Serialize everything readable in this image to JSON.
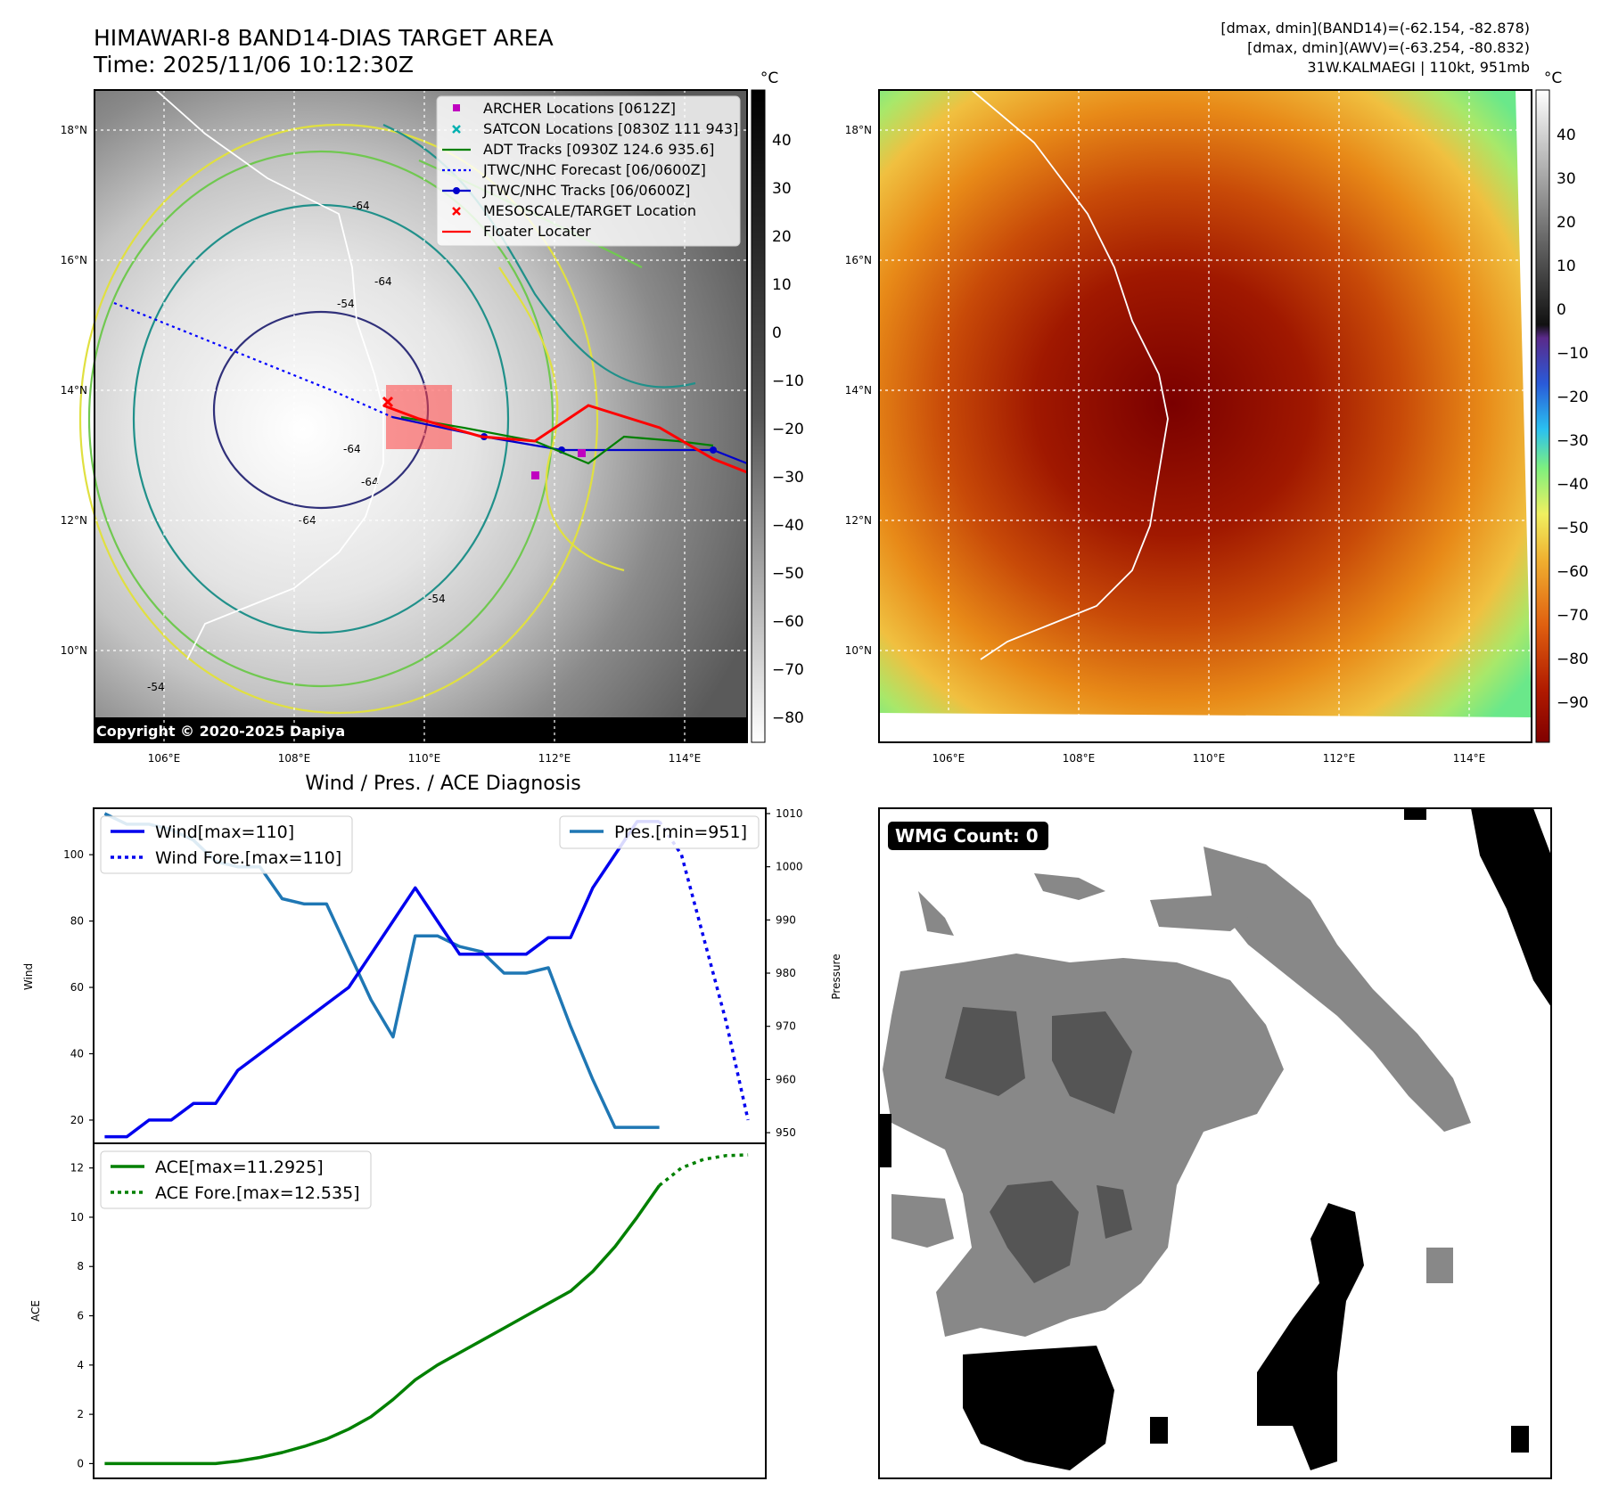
{
  "header": {
    "title_line1": "HIMAWARI-8 BAND14-DIAS TARGET AREA",
    "title_line2": "Time: 2025/11/06 10:12:30Z",
    "info_line1": "[dmax, dmin](BAND14)=(-62.154, -82.878)",
    "info_line2": "[dmax, dmin](AWV)=(-63.254, -80.832)",
    "info_line3": "31W.KALMAEGI | 110kt, 951mb"
  },
  "maps": {
    "lat_labels": [
      "18°N",
      "16°N",
      "14°N",
      "12°N",
      "10°N"
    ],
    "lon_labels": [
      "106°E",
      "108°E",
      "110°E",
      "112°E",
      "114°E"
    ],
    "contour_labels": [
      "-64",
      "-64",
      "-54",
      "-64",
      "-64",
      "-64",
      "-54",
      "-54"
    ],
    "copyright": "Copyright © 2020-2025 Dapiya",
    "colorbar_unit": "°C",
    "colorbar1_ticks": [
      "40",
      "30",
      "20",
      "10",
      "0",
      "−10",
      "−20",
      "−30",
      "−40",
      "−50",
      "−60",
      "−70",
      "−80"
    ],
    "colorbar2_ticks": [
      "40",
      "30",
      "20",
      "10",
      "0",
      "−10",
      "−20",
      "−30",
      "−40",
      "−50",
      "−60",
      "−70",
      "−80",
      "−90"
    ],
    "legend": [
      {
        "label": "ARCHER Locations [0612Z]",
        "color": "#c000c0",
        "marker": "square"
      },
      {
        "label": "SATCON Locations [0830Z 111 943]",
        "color": "#00b0b0",
        "marker": "x"
      },
      {
        "label": "ADT Tracks [0930Z 124.6 935.6]",
        "color": "#008000",
        "marker": "line"
      },
      {
        "label": "JTWC/NHC Forecast [06/0600Z]",
        "color": "#0000ff",
        "marker": "dotted"
      },
      {
        "label": "JTWC/NHC Tracks [06/0600Z]",
        "color": "#0000cc",
        "marker": "line-dot"
      },
      {
        "label": "MESOSCALE/TARGET Location",
        "color": "#ff0000",
        "marker": "x"
      },
      {
        "label": "Floater Locater",
        "color": "#ff0000",
        "marker": "line"
      }
    ]
  },
  "diagnosis": {
    "title": "Wind / Pres. / ACE Diagnosis",
    "wind_label": "Wind",
    "pressure_label": "Pressure",
    "ace_label": "ACE",
    "legend_wind": "Wind[max=110]",
    "legend_wind_fore": "Wind Fore.[max=110]",
    "legend_pres": "Pres.[min=951]",
    "legend_ace": "ACE[max=11.2925]",
    "legend_ace_fore": "ACE Fore.[max=12.535]",
    "wind_ticks": [
      "20",
      "40",
      "60",
      "80",
      "100"
    ],
    "pres_ticks": [
      "950",
      "960",
      "970",
      "980",
      "990",
      "1000",
      "1010"
    ],
    "ace_ticks": [
      "0",
      "2",
      "4",
      "6",
      "8",
      "10",
      "12"
    ]
  },
  "wmg": {
    "label": "WMG Count: 0"
  },
  "chart_data": [
    {
      "type": "line",
      "title": "Wind / Pres. / ACE Diagnosis",
      "ylabel": "Wind",
      "ylim": [
        13,
        114
      ],
      "series": [
        {
          "name": "Wind[max=110]",
          "color": "#0000ee",
          "style": "solid",
          "x": [
            0,
            1,
            2,
            3,
            4,
            5,
            6,
            7,
            8,
            9,
            10,
            11,
            12,
            13,
            14,
            15,
            16,
            17,
            18,
            19,
            20,
            21,
            22,
            23,
            24,
            25
          ],
          "values": [
            15,
            15,
            20,
            20,
            25,
            25,
            35,
            40,
            45,
            50,
            55,
            60,
            70,
            80,
            90,
            80,
            70,
            70,
            70,
            70,
            75,
            75,
            90,
            100,
            110,
            110
          ]
        },
        {
          "name": "Wind Fore.[max=110]",
          "color": "#0000ee",
          "style": "dotted",
          "x": [
            25,
            26,
            27,
            28,
            29
          ],
          "values": [
            110,
            100,
            75,
            50,
            20
          ]
        }
      ]
    },
    {
      "type": "line",
      "ylabel": "Pressure",
      "ylim": [
        948,
        1011
      ],
      "series": [
        {
          "name": "Pres.[min=951]",
          "color": "#1f77b4",
          "style": "solid",
          "x": [
            0,
            1,
            2,
            3,
            4,
            5,
            6,
            7,
            8,
            9,
            10,
            11,
            12,
            13,
            14,
            15,
            16,
            17,
            18,
            19,
            20,
            21,
            22,
            23,
            24,
            25
          ],
          "values": [
            1010,
            1008,
            1008,
            1007,
            1005,
            1001,
            1000,
            1000,
            994,
            993,
            993,
            984,
            975,
            968,
            987,
            987,
            985,
            984,
            980,
            980,
            981,
            970,
            960,
            951,
            951,
            951
          ]
        }
      ]
    },
    {
      "type": "line",
      "ylabel": "ACE",
      "ylim": [
        -0.6,
        13.0
      ],
      "series": [
        {
          "name": "ACE[max=11.2925]",
          "color": "#008000",
          "style": "solid",
          "x": [
            0,
            1,
            2,
            3,
            4,
            5,
            6,
            7,
            8,
            9,
            10,
            11,
            12,
            13,
            14,
            15,
            16,
            17,
            18,
            19,
            20,
            21,
            22,
            23,
            24,
            25
          ],
          "values": [
            0,
            0,
            0,
            0,
            0,
            0,
            0.1,
            0.25,
            0.45,
            0.7,
            1.0,
            1.4,
            1.9,
            2.6,
            3.4,
            4.0,
            4.5,
            5.0,
            5.5,
            6.0,
            6.5,
            7.0,
            7.8,
            8.8,
            10.0,
            11.29
          ]
        },
        {
          "name": "ACE Fore.[max=12.535]",
          "color": "#008000",
          "style": "dotted",
          "x": [
            25,
            26,
            27,
            28,
            29
          ],
          "values": [
            11.29,
            12.0,
            12.35,
            12.5,
            12.53
          ]
        }
      ]
    }
  ]
}
